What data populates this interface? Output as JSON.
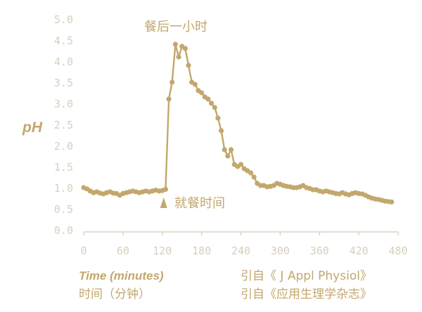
{
  "chart_data": {
    "type": "line",
    "ylabel": "pH",
    "xlabel_en": "Time (minutes)",
    "xlabel_cn": "时间（分钟）",
    "source_en": "引自《 J Appl Physiol》",
    "source_cn": "引自《应用生理学杂志》",
    "annotations": {
      "meal_start": "就餐时间",
      "one_hour_after": "餐后一小时"
    },
    "xlim": [
      0,
      480
    ],
    "ylim": [
      0,
      5
    ],
    "x_ticks": [
      "0",
      "60",
      "120",
      "180",
      "240",
      "300",
      "360",
      "420",
      "480"
    ],
    "y_ticks": [
      "0.0",
      "0.5",
      "1.0",
      "1.5",
      "2.0",
      "2.5",
      "3.0",
      "3.5",
      "4.0",
      "4.5",
      "5.0"
    ],
    "meal_time": 120,
    "colors": {
      "line": "#c3a76c",
      "axis": "#ddd3c0",
      "tick_text": "#d8cfbd"
    },
    "series": [
      {
        "points": [
          [
            0,
            1.0
          ],
          [
            5,
            0.97
          ],
          [
            10,
            0.92
          ],
          [
            15,
            0.88
          ],
          [
            20,
            0.9
          ],
          [
            25,
            0.87
          ],
          [
            30,
            0.85
          ],
          [
            35,
            0.88
          ],
          [
            40,
            0.9
          ],
          [
            45,
            0.87
          ],
          [
            50,
            0.86
          ],
          [
            55,
            0.82
          ],
          [
            60,
            0.86
          ],
          [
            65,
            0.88
          ],
          [
            70,
            0.9
          ],
          [
            75,
            0.92
          ],
          [
            80,
            0.9
          ],
          [
            85,
            0.88
          ],
          [
            90,
            0.9
          ],
          [
            95,
            0.92
          ],
          [
            100,
            0.9
          ],
          [
            105,
            0.92
          ],
          [
            110,
            0.94
          ],
          [
            115,
            0.92
          ],
          [
            120,
            0.93
          ],
          [
            125,
            0.96
          ],
          [
            130,
            3.1
          ],
          [
            135,
            3.5
          ],
          [
            140,
            4.4
          ],
          [
            145,
            4.1
          ],
          [
            150,
            4.35
          ],
          [
            155,
            4.3
          ],
          [
            160,
            3.9
          ],
          [
            165,
            3.5
          ],
          [
            170,
            3.45
          ],
          [
            175,
            3.3
          ],
          [
            180,
            3.25
          ],
          [
            185,
            3.15
          ],
          [
            190,
            3.1
          ],
          [
            195,
            3.0
          ],
          [
            200,
            2.9
          ],
          [
            205,
            2.65
          ],
          [
            210,
            2.35
          ],
          [
            215,
            1.9
          ],
          [
            220,
            1.75
          ],
          [
            225,
            1.9
          ],
          [
            230,
            1.55
          ],
          [
            235,
            1.5
          ],
          [
            240,
            1.55
          ],
          [
            245,
            1.45
          ],
          [
            250,
            1.4
          ],
          [
            255,
            1.35
          ],
          [
            260,
            1.25
          ],
          [
            265,
            1.1
          ],
          [
            270,
            1.05
          ],
          [
            275,
            1.05
          ],
          [
            280,
            1.02
          ],
          [
            285,
            1.03
          ],
          [
            290,
            1.05
          ],
          [
            295,
            1.1
          ],
          [
            300,
            1.08
          ],
          [
            305,
            1.05
          ],
          [
            310,
            1.03
          ],
          [
            315,
            1.02
          ],
          [
            320,
            1.0
          ],
          [
            325,
            1.0
          ],
          [
            330,
            1.02
          ],
          [
            335,
            1.05
          ],
          [
            340,
            1.0
          ],
          [
            345,
            0.98
          ],
          [
            350,
            0.95
          ],
          [
            355,
            0.95
          ],
          [
            360,
            0.92
          ],
          [
            365,
            0.9
          ],
          [
            370,
            0.92
          ],
          [
            375,
            0.9
          ],
          [
            380,
            0.88
          ],
          [
            385,
            0.86
          ],
          [
            390,
            0.85
          ],
          [
            395,
            0.88
          ],
          [
            400,
            0.85
          ],
          [
            405,
            0.83
          ],
          [
            410,
            0.86
          ],
          [
            415,
            0.88
          ],
          [
            420,
            0.86
          ],
          [
            425,
            0.85
          ],
          [
            430,
            0.82
          ],
          [
            435,
            0.78
          ],
          [
            440,
            0.75
          ],
          [
            445,
            0.73
          ],
          [
            450,
            0.72
          ],
          [
            455,
            0.7
          ],
          [
            460,
            0.68
          ],
          [
            465,
            0.67
          ],
          [
            470,
            0.66
          ]
        ]
      }
    ]
  }
}
